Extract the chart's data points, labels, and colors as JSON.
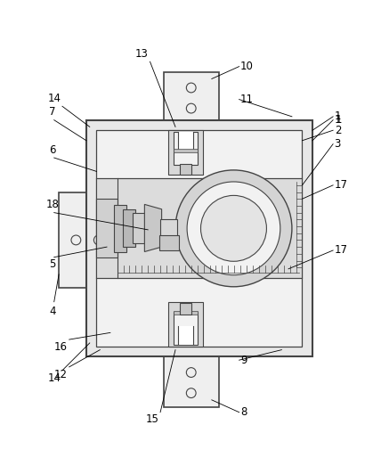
{
  "bg_color": "#ffffff",
  "lc": "#444444",
  "lc_thin": "#666666",
  "fill_outer": "#e8e8e8",
  "fill_inner": "#f2f2f2",
  "fill_mid_band": "#dcdcdc",
  "fill_bracket": "#efefef",
  "fill_dark": "#c8c8c8",
  "fill_slot": "#e0e0e0",
  "figsize": [
    4.28,
    5.32
  ],
  "dpi": 100
}
